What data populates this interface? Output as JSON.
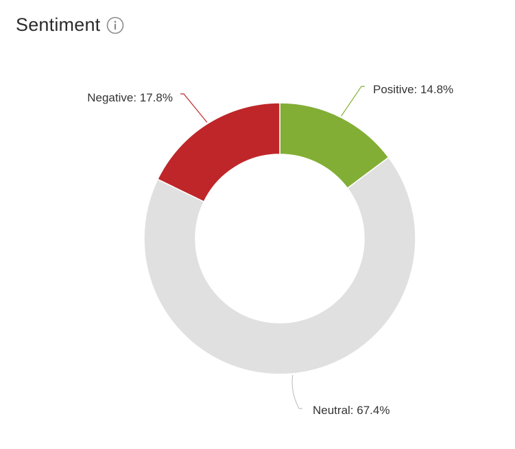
{
  "header": {
    "title": "Sentiment",
    "info_icon": "info-icon"
  },
  "chart_data": {
    "type": "pie",
    "donut": true,
    "start_angle_deg": 0,
    "direction": "clockwise",
    "slices": [
      {
        "name": "Positive",
        "value": 14.8,
        "label": "Positive: 14.8%",
        "color": "#82ae35"
      },
      {
        "name": "Neutral",
        "value": 67.4,
        "label": "Neutral: 67.4%",
        "color": "#e0e0e0"
      },
      {
        "name": "Negative",
        "value": 17.8,
        "label": "Negative: 17.8%",
        "color": "#bf2629"
      }
    ]
  }
}
